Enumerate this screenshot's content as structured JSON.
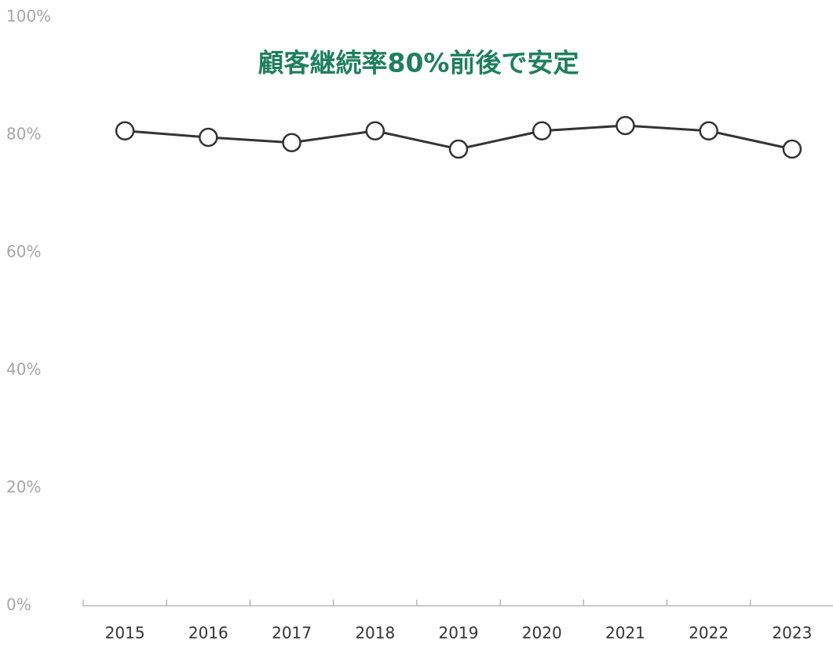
{
  "chart_data": {
    "type": "line",
    "title": "顧客継続率80%前後で安定",
    "categories": [
      "2015",
      "2016",
      "2017",
      "2018",
      "2019",
      "2020",
      "2021",
      "2022",
      "2023"
    ],
    "series": [
      {
        "color": "#333333",
        "values": [
          80.7,
          79.6,
          78.7,
          80.7,
          77.6,
          80.7,
          81.6,
          80.7,
          77.6
        ]
      }
    ],
    "ylim": [
      0,
      100
    ],
    "yticks": [
      {
        "value": 0,
        "label": "0%"
      },
      {
        "value": 20,
        "label": "20%"
      },
      {
        "value": 40,
        "label": "40%"
      },
      {
        "value": 60,
        "label": "60%"
      },
      {
        "value": 80,
        "label": "80%"
      },
      {
        "value": 100,
        "label": "100%"
      }
    ],
    "grid": false
  }
}
